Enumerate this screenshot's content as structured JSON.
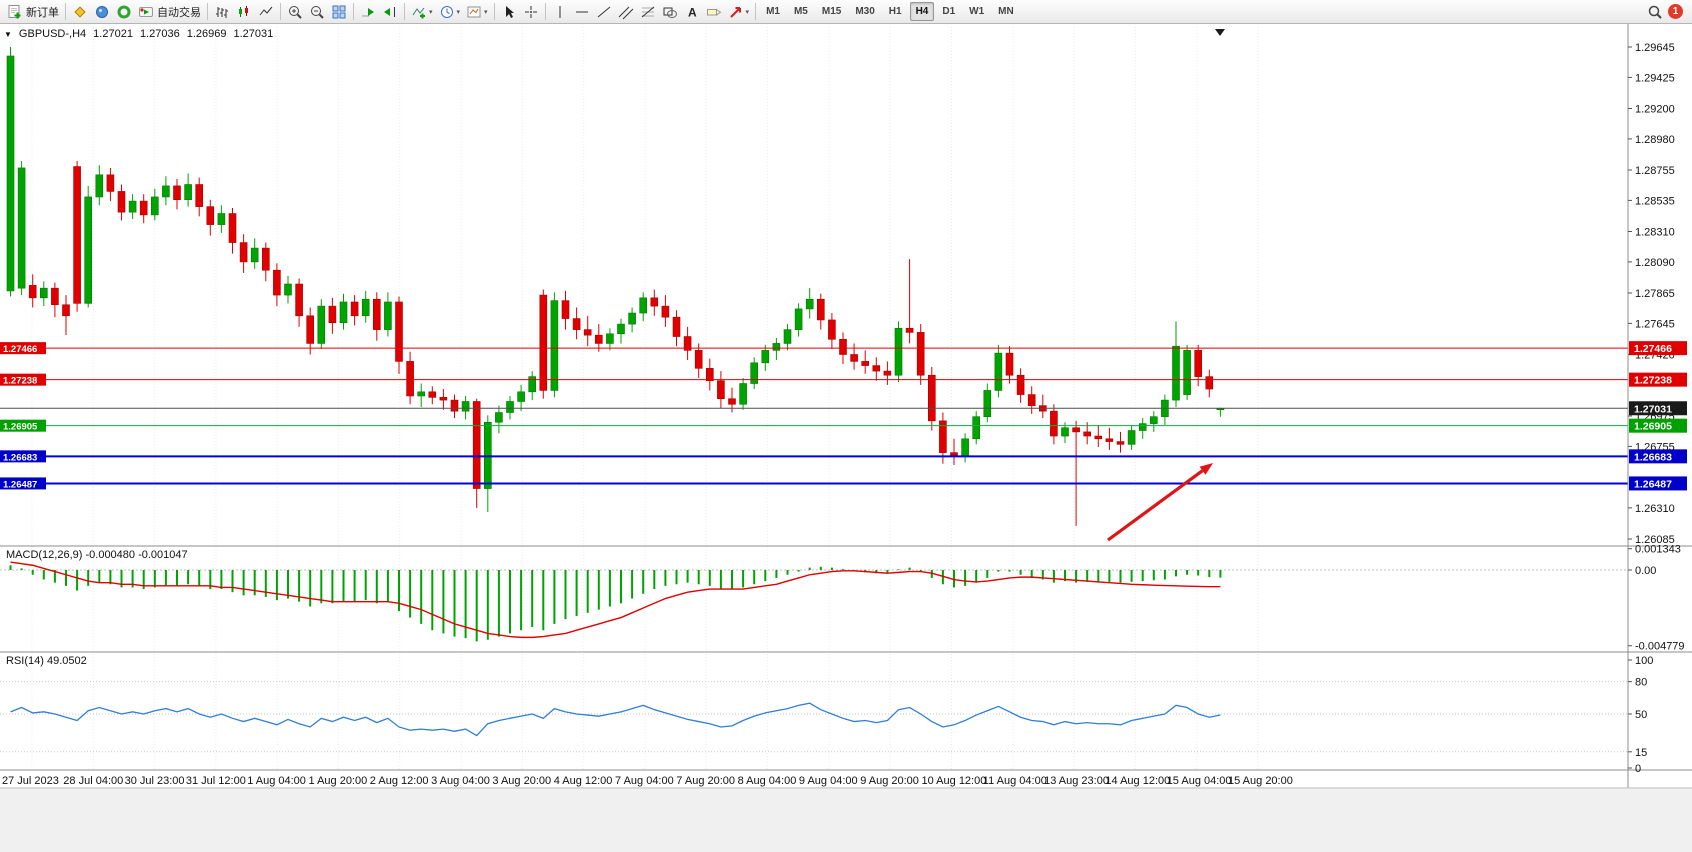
{
  "toolbar": {
    "groups": [
      {
        "items": [
          {
            "name": "new-order-button",
            "icon": "new-order-icon",
            "label": "新订单"
          }
        ]
      },
      {
        "items": [
          {
            "name": "market-watch-button",
            "icon": "market-watch-icon"
          },
          {
            "name": "data-window-button",
            "icon": "data-window-icon"
          },
          {
            "name": "navigator-button",
            "icon": "navigator-icon"
          },
          {
            "name": "auto-trading-button",
            "icon": "auto-trading-icon",
            "label": "自动交易"
          }
        ]
      },
      {
        "items": [
          {
            "name": "bar-chart-button",
            "icon": "bar-chart-icon"
          },
          {
            "name": "candlestick-chart-button",
            "icon": "candlestick-chart-icon"
          },
          {
            "name": "line-chart-button",
            "icon": "line-chart-icon"
          }
        ]
      },
      {
        "items": [
          {
            "name": "zoom-in-button",
            "icon": "zoom-in-icon"
          },
          {
            "name": "zoom-out-button",
            "icon": "zoom-out-icon"
          },
          {
            "name": "tile-windows-button",
            "icon": "tile-windows-icon"
          }
        ]
      },
      {
        "items": [
          {
            "name": "auto-scroll-button",
            "icon": "auto-scroll-icon"
          },
          {
            "name": "chart-shift-button",
            "icon": "chart-shift-icon"
          }
        ]
      },
      {
        "items": [
          {
            "name": "indicators-button",
            "icon": "indicators-icon",
            "dropdown": true
          },
          {
            "name": "periods-button",
            "icon": "periods-icon",
            "dropdown": true
          },
          {
            "name": "templates-button",
            "icon": "templates-icon",
            "dropdown": true
          }
        ]
      },
      {
        "items": [
          {
            "name": "cursor-button",
            "icon": "cursor-icon"
          },
          {
            "name": "crosshair-button",
            "icon": "crosshair-icon"
          }
        ]
      },
      {
        "items": [
          {
            "name": "vertical-line-button",
            "icon": "vertical-line-icon"
          },
          {
            "name": "horizontal-line-button",
            "icon": "horizontal-line-icon"
          },
          {
            "name": "trendline-button",
            "icon": "trendline-icon"
          },
          {
            "name": "equidistant-channel-button",
            "icon": "equidistant-channel-icon"
          },
          {
            "name": "fibonacci-button",
            "icon": "fibonacci-icon"
          },
          {
            "name": "shapes-button",
            "icon": "shapes-icon"
          },
          {
            "name": "text-button",
            "icon": "text-icon"
          },
          {
            "name": "text-label-button",
            "icon": "arrow-label-icon"
          },
          {
            "name": "arrows-button",
            "icon": "arrows-icon",
            "dropdown": true
          }
        ]
      }
    ],
    "timeframes": [
      {
        "label": "M1"
      },
      {
        "label": "M5"
      },
      {
        "label": "M15"
      },
      {
        "label": "M30"
      },
      {
        "label": "H1"
      },
      {
        "label": "H4",
        "active": true
      },
      {
        "label": "D1"
      },
      {
        "label": "W1"
      },
      {
        "label": "MN"
      }
    ],
    "right": {
      "search_icon": "search-icon",
      "notification_count": "1"
    }
  },
  "chart": {
    "symbol_period": "GBPUSD-,H4",
    "open": "1.27021",
    "high": "1.27036",
    "low": "1.26969",
    "close": "1.27031",
    "price_axis": [
      "1.29645",
      "1.29425",
      "1.29200",
      "1.28980",
      "1.28755",
      "1.28535",
      "1.28310",
      "1.28090",
      "1.27865",
      "1.27645",
      "1.27420",
      "1.26975",
      "1.26755",
      "1.26310",
      "1.26085"
    ],
    "levels": [
      {
        "name": "resistance-line-upper",
        "price": 1.27466,
        "label": "1.27466",
        "color": "#e00000",
        "badge_color": "#e00000",
        "width": 1,
        "left_badge": true
      },
      {
        "name": "resistance-line-lower",
        "price": 1.27238,
        "label": "1.27238",
        "color": "#e00000",
        "badge_color": "#e00000",
        "width": 1,
        "left_badge": true
      },
      {
        "name": "current-price-line",
        "price": 1.27031,
        "label": "1.27031",
        "color": "#4d4d4d",
        "badge_color": "#1a1a1a",
        "width": 1,
        "left_badge": false
      },
      {
        "name": "support-line-green",
        "price": 1.26905,
        "label": "1.26905",
        "color": "#00b23b",
        "badge_color": "#00a000",
        "width": 1,
        "left_badge": true
      },
      {
        "name": "support-line-blue-upper",
        "price": 1.26683,
        "label": "1.26683",
        "color": "#0000dc",
        "badge_color": "#0000c8",
        "width": 2,
        "left_badge": true
      },
      {
        "name": "support-line-blue-lower",
        "price": 1.26487,
        "label": "1.26487",
        "color": "#0000dc",
        "badge_color": "#0000c8",
        "width": 2,
        "left_badge": true
      }
    ],
    "time_axis": [
      "27 Jul 2023",
      "28 Jul 04:00",
      "30 Jul 23:00",
      "31 Jul 12:00",
      "1 Aug 04:00",
      "1 Aug 20:00",
      "2 Aug 12:00",
      "3 Aug 04:00",
      "3 Aug 20:00",
      "4 Aug 12:00",
      "7 Aug 04:00",
      "7 Aug 20:00",
      "8 Aug 04:00",
      "9 Aug 04:00",
      "9 Aug 20:00",
      "10 Aug 12:00",
      "11 Aug 04:00",
      "13 Aug 23:00",
      "14 Aug 12:00",
      "15 Aug 04:00",
      "15 Aug 20:00"
    ],
    "candles": [
      [
        1.2788,
        1.29645,
        1.2784,
        1.2958
      ],
      [
        1.279,
        1.2882,
        1.2785,
        1.2877
      ],
      [
        1.2792,
        1.28,
        1.2776,
        1.2783
      ],
      [
        1.2783,
        1.2795,
        1.2777,
        1.279
      ],
      [
        1.279,
        1.2794,
        1.2769,
        1.2778
      ],
      [
        1.2778,
        1.2785,
        1.2756,
        1.277
      ],
      [
        1.2878,
        1.2882,
        1.2773,
        1.2779
      ],
      [
        1.2779,
        1.2864,
        1.2776,
        1.2856
      ],
      [
        1.2856,
        1.2879,
        1.285,
        1.2872
      ],
      [
        1.2872,
        1.2877,
        1.2853,
        1.286
      ],
      [
        1.286,
        1.2865,
        1.2839,
        1.2845
      ],
      [
        1.2845,
        1.2858,
        1.284,
        1.2853
      ],
      [
        1.2853,
        1.2858,
        1.2837,
        1.2843
      ],
      [
        1.2843,
        1.2862,
        1.2839,
        1.2856
      ],
      [
        1.2856,
        1.2871,
        1.285,
        1.2864
      ],
      [
        1.2864,
        1.2869,
        1.2847,
        1.2854
      ],
      [
        1.2854,
        1.2873,
        1.2849,
        1.2865
      ],
      [
        1.2865,
        1.287,
        1.2842,
        1.2849
      ],
      [
        1.2849,
        1.2854,
        1.2828,
        1.2836
      ],
      [
        1.2836,
        1.285,
        1.283,
        1.2844
      ],
      [
        1.2844,
        1.2848,
        1.2815,
        1.2823
      ],
      [
        1.2823,
        1.2829,
        1.2801,
        1.2809
      ],
      [
        1.2809,
        1.2826,
        1.2804,
        1.2819
      ],
      [
        1.2819,
        1.2823,
        1.2795,
        1.2803
      ],
      [
        1.2803,
        1.2808,
        1.2777,
        1.2785
      ],
      [
        1.2785,
        1.2799,
        1.2779,
        1.2793
      ],
      [
        1.2793,
        1.2797,
        1.2762,
        1.277
      ],
      [
        1.277,
        1.2776,
        1.2742,
        1.275
      ],
      [
        1.275,
        1.2782,
        1.2746,
        1.2777
      ],
      [
        1.2777,
        1.2783,
        1.2757,
        1.2765
      ],
      [
        1.2765,
        1.2786,
        1.276,
        1.278
      ],
      [
        1.278,
        1.2785,
        1.2763,
        1.277
      ],
      [
        1.277,
        1.2788,
        1.2765,
        1.2782
      ],
      [
        1.2782,
        1.2787,
        1.2752,
        1.276
      ],
      [
        1.276,
        1.2787,
        1.2755,
        1.278
      ],
      [
        1.278,
        1.2784,
        1.2728,
        1.2737
      ],
      [
        1.2737,
        1.2744,
        1.2706,
        1.2712
      ],
      [
        1.2712,
        1.2721,
        1.2704,
        1.2715
      ],
      [
        1.2715,
        1.2719,
        1.2706,
        1.2711
      ],
      [
        1.2711,
        1.2717,
        1.2702,
        1.2709
      ],
      [
        1.2709,
        1.2713,
        1.2696,
        1.2701
      ],
      [
        1.2701,
        1.2712,
        1.2695,
        1.2708
      ],
      [
        1.2708,
        1.271,
        1.2631,
        1.2645
      ],
      [
        1.2645,
        1.2698,
        1.2628,
        1.2693
      ],
      [
        1.2693,
        1.2705,
        1.2685,
        1.27
      ],
      [
        1.27,
        1.2712,
        1.2695,
        1.2708
      ],
      [
        1.2708,
        1.272,
        1.2701,
        1.2715
      ],
      [
        1.2715,
        1.273,
        1.2709,
        1.2726
      ],
      [
        1.2785,
        1.2789,
        1.271,
        1.2716
      ],
      [
        1.2716,
        1.2787,
        1.2711,
        1.2781
      ],
      [
        1.2781,
        1.2788,
        1.276,
        1.2768
      ],
      [
        1.2768,
        1.2776,
        1.2753,
        1.276
      ],
      [
        1.276,
        1.277,
        1.2748,
        1.2756
      ],
      [
        1.2756,
        1.2764,
        1.2744,
        1.275
      ],
      [
        1.275,
        1.2761,
        1.2745,
        1.2757
      ],
      [
        1.2757,
        1.2768,
        1.275,
        1.2764
      ],
      [
        1.2764,
        1.2776,
        1.2758,
        1.2772
      ],
      [
        1.2772,
        1.2787,
        1.2766,
        1.2783
      ],
      [
        1.2783,
        1.2789,
        1.277,
        1.2777
      ],
      [
        1.2777,
        1.2785,
        1.2762,
        1.2769
      ],
      [
        1.2769,
        1.2774,
        1.2748,
        1.2755
      ],
      [
        1.2755,
        1.2762,
        1.2738,
        1.2745
      ],
      [
        1.2745,
        1.275,
        1.2725,
        1.2732
      ],
      [
        1.2732,
        1.2739,
        1.2716,
        1.2723
      ],
      [
        1.2723,
        1.273,
        1.2703,
        1.271
      ],
      [
        1.271,
        1.2718,
        1.27,
        1.2706
      ],
      [
        1.2706,
        1.2725,
        1.2702,
        1.2721
      ],
      [
        1.2721,
        1.274,
        1.2717,
        1.2736
      ],
      [
        1.2736,
        1.2749,
        1.273,
        1.2745
      ],
      [
        1.2745,
        1.2754,
        1.2738,
        1.275
      ],
      [
        1.275,
        1.2764,
        1.2745,
        1.276
      ],
      [
        1.276,
        1.2779,
        1.2755,
        1.2775
      ],
      [
        1.2775,
        1.279,
        1.2768,
        1.2782
      ],
      [
        1.2782,
        1.2786,
        1.276,
        1.2767
      ],
      [
        1.2767,
        1.2772,
        1.2746,
        1.2753
      ],
      [
        1.2753,
        1.2758,
        1.2735,
        1.2742
      ],
      [
        1.2742,
        1.275,
        1.2731,
        1.2737
      ],
      [
        1.2737,
        1.2745,
        1.2728,
        1.2734
      ],
      [
        1.2734,
        1.274,
        1.2723,
        1.273
      ],
      [
        1.273,
        1.2737,
        1.272,
        1.2727
      ],
      [
        1.2727,
        1.2766,
        1.2722,
        1.2761
      ],
      [
        1.2761,
        1.2811,
        1.275,
        1.2758
      ],
      [
        1.2758,
        1.2764,
        1.272,
        1.2727
      ],
      [
        1.2727,
        1.2733,
        1.2687,
        1.2694
      ],
      [
        1.2694,
        1.27,
        1.2663,
        1.2671
      ],
      [
        1.2671,
        1.2681,
        1.2662,
        1.2669
      ],
      [
        1.2669,
        1.2685,
        1.2664,
        1.2681
      ],
      [
        1.2681,
        1.2701,
        1.2677,
        1.2697
      ],
      [
        1.2697,
        1.2721,
        1.2693,
        1.2716
      ],
      [
        1.2716,
        1.2749,
        1.2711,
        1.2743
      ],
      [
        1.2743,
        1.2748,
        1.2721,
        1.2727
      ],
      [
        1.2727,
        1.2732,
        1.2707,
        1.2713
      ],
      [
        1.2713,
        1.2719,
        1.2699,
        1.2705
      ],
      [
        1.2705,
        1.2713,
        1.2696,
        1.2701
      ],
      [
        1.2701,
        1.2706,
        1.2677,
        1.2683
      ],
      [
        1.2683,
        1.2693,
        1.2678,
        1.2689
      ],
      [
        1.2689,
        1.2694,
        1.2618,
        1.2686
      ],
      [
        1.2686,
        1.2693,
        1.2677,
        1.2683
      ],
      [
        1.2683,
        1.2691,
        1.2675,
        1.2681
      ],
      [
        1.2681,
        1.2689,
        1.2673,
        1.2679
      ],
      [
        1.2679,
        1.2686,
        1.2671,
        1.2677
      ],
      [
        1.2677,
        1.2691,
        1.2673,
        1.2687
      ],
      [
        1.2687,
        1.2696,
        1.2681,
        1.2692
      ],
      [
        1.2692,
        1.2701,
        1.2686,
        1.2697
      ],
      [
        1.2697,
        1.2713,
        1.2691,
        1.2709
      ],
      [
        1.2709,
        1.2766,
        1.2704,
        1.2748
      ],
      [
        1.2713,
        1.2749,
        1.2709,
        1.2745
      ],
      [
        1.2745,
        1.2749,
        1.2719,
        1.2726
      ],
      [
        1.2726,
        1.2731,
        1.2711,
        1.2717
      ],
      [
        1.27021,
        1.27036,
        1.26969,
        1.27031
      ]
    ]
  },
  "macd": {
    "name": "MACD(12,26,9)",
    "value_main": "-0.000480",
    "value_signal": "-0.001047",
    "axis": [
      "0.001343",
      "0.00",
      "-0.004779"
    ],
    "unit": 0.0001,
    "histogram": [
      3,
      1,
      -3,
      -6,
      -8,
      -10,
      -13,
      -10,
      -8,
      -9,
      -11,
      -11,
      -12,
      -11,
      -10,
      -10,
      -9,
      -10,
      -12,
      -12,
      -14,
      -16,
      -16,
      -17,
      -19,
      -18,
      -20,
      -23,
      -21,
      -21,
      -20,
      -20,
      -19,
      -21,
      -20,
      -26,
      -30,
      -34,
      -38,
      -40,
      -42,
      -43,
      -45,
      -44,
      -42,
      -40,
      -38,
      -36,
      -38,
      -34,
      -31,
      -29,
      -27,
      -25,
      -23,
      -21,
      -18,
      -15,
      -12,
      -10,
      -9,
      -8,
      -9,
      -10,
      -12,
      -12,
      -11,
      -9,
      -7,
      -5,
      -3,
      -1,
      1.5,
      2,
      1.5,
      0.5,
      -0.5,
      -1.5,
      -2,
      -2,
      0.5,
      1.5,
      -1,
      -5,
      -9,
      -11,
      -10,
      -8,
      -5,
      -1,
      -1,
      -3,
      -5,
      -6,
      -8,
      -7,
      -8,
      -7.5,
      -7.5,
      -7.5,
      -8,
      -7.5,
      -7,
      -6.5,
      -6,
      -4,
      -3,
      -3.5,
      -4.5,
      -4.8
    ],
    "signal": [
      5,
      4,
      3,
      1,
      -1,
      -3,
      -5,
      -7,
      -8,
      -8,
      -9,
      -9,
      -10,
      -10,
      -10,
      -10,
      -10,
      -10,
      -10,
      -11,
      -11,
      -12,
      -13,
      -14,
      -15,
      -16,
      -17,
      -18,
      -19,
      -20,
      -20,
      -20,
      -20,
      -20,
      -20,
      -21,
      -23,
      -25,
      -28,
      -31,
      -34,
      -36,
      -38,
      -40,
      -41,
      -42,
      -42.5,
      -42.5,
      -42,
      -41,
      -40,
      -38,
      -36,
      -34,
      -32,
      -30,
      -27,
      -24,
      -21,
      -18,
      -16,
      -14,
      -13,
      -12,
      -12,
      -12,
      -12,
      -11,
      -10,
      -9,
      -7,
      -5,
      -3,
      -2,
      -1,
      -0.5,
      -0.5,
      -1,
      -1.5,
      -2,
      -1.5,
      -1,
      -1,
      -2,
      -4,
      -6,
      -7,
      -7.5,
      -7,
      -6,
      -5,
      -4.5,
      -4.5,
      -5,
      -5.5,
      -6,
      -6.5,
      -7,
      -7.5,
      -8,
      -8.5,
      -9,
      -9.3,
      -9.6,
      -9.8,
      -10,
      -10.2,
      -10.4,
      -10.5,
      -10.5
    ]
  },
  "rsi": {
    "name": "RSI(14)",
    "value": "49.0502",
    "axis": [
      "100",
      "80",
      "50",
      "15",
      "0"
    ],
    "levels": [
      80,
      50,
      15
    ],
    "values": [
      52,
      56,
      51,
      52,
      50,
      47,
      44,
      53,
      56,
      53,
      50,
      52,
      50,
      53,
      55,
      52,
      55,
      50,
      47,
      50,
      46,
      43,
      46,
      43,
      40,
      45,
      41,
      38,
      46,
      43,
      47,
      44,
      47,
      42,
      46,
      38,
      35,
      36,
      35,
      36,
      34,
      36,
      30,
      41,
      44,
      46,
      48,
      50,
      46,
      55,
      52,
      50,
      49,
      48,
      50,
      52,
      55,
      58,
      54,
      51,
      48,
      45,
      43,
      41,
      38,
      39,
      44,
      48,
      51,
      53,
      55,
      58,
      60,
      54,
      50,
      46,
      43,
      44,
      42,
      44,
      54,
      56,
      50,
      43,
      38,
      40,
      44,
      49,
      53,
      57,
      52,
      47,
      44,
      43,
      40,
      43,
      41,
      42,
      41,
      41,
      40,
      44,
      46,
      48,
      50,
      58,
      56,
      50,
      47,
      49.05
    ]
  },
  "annotations": {
    "arrow_color": "#e01414"
  }
}
